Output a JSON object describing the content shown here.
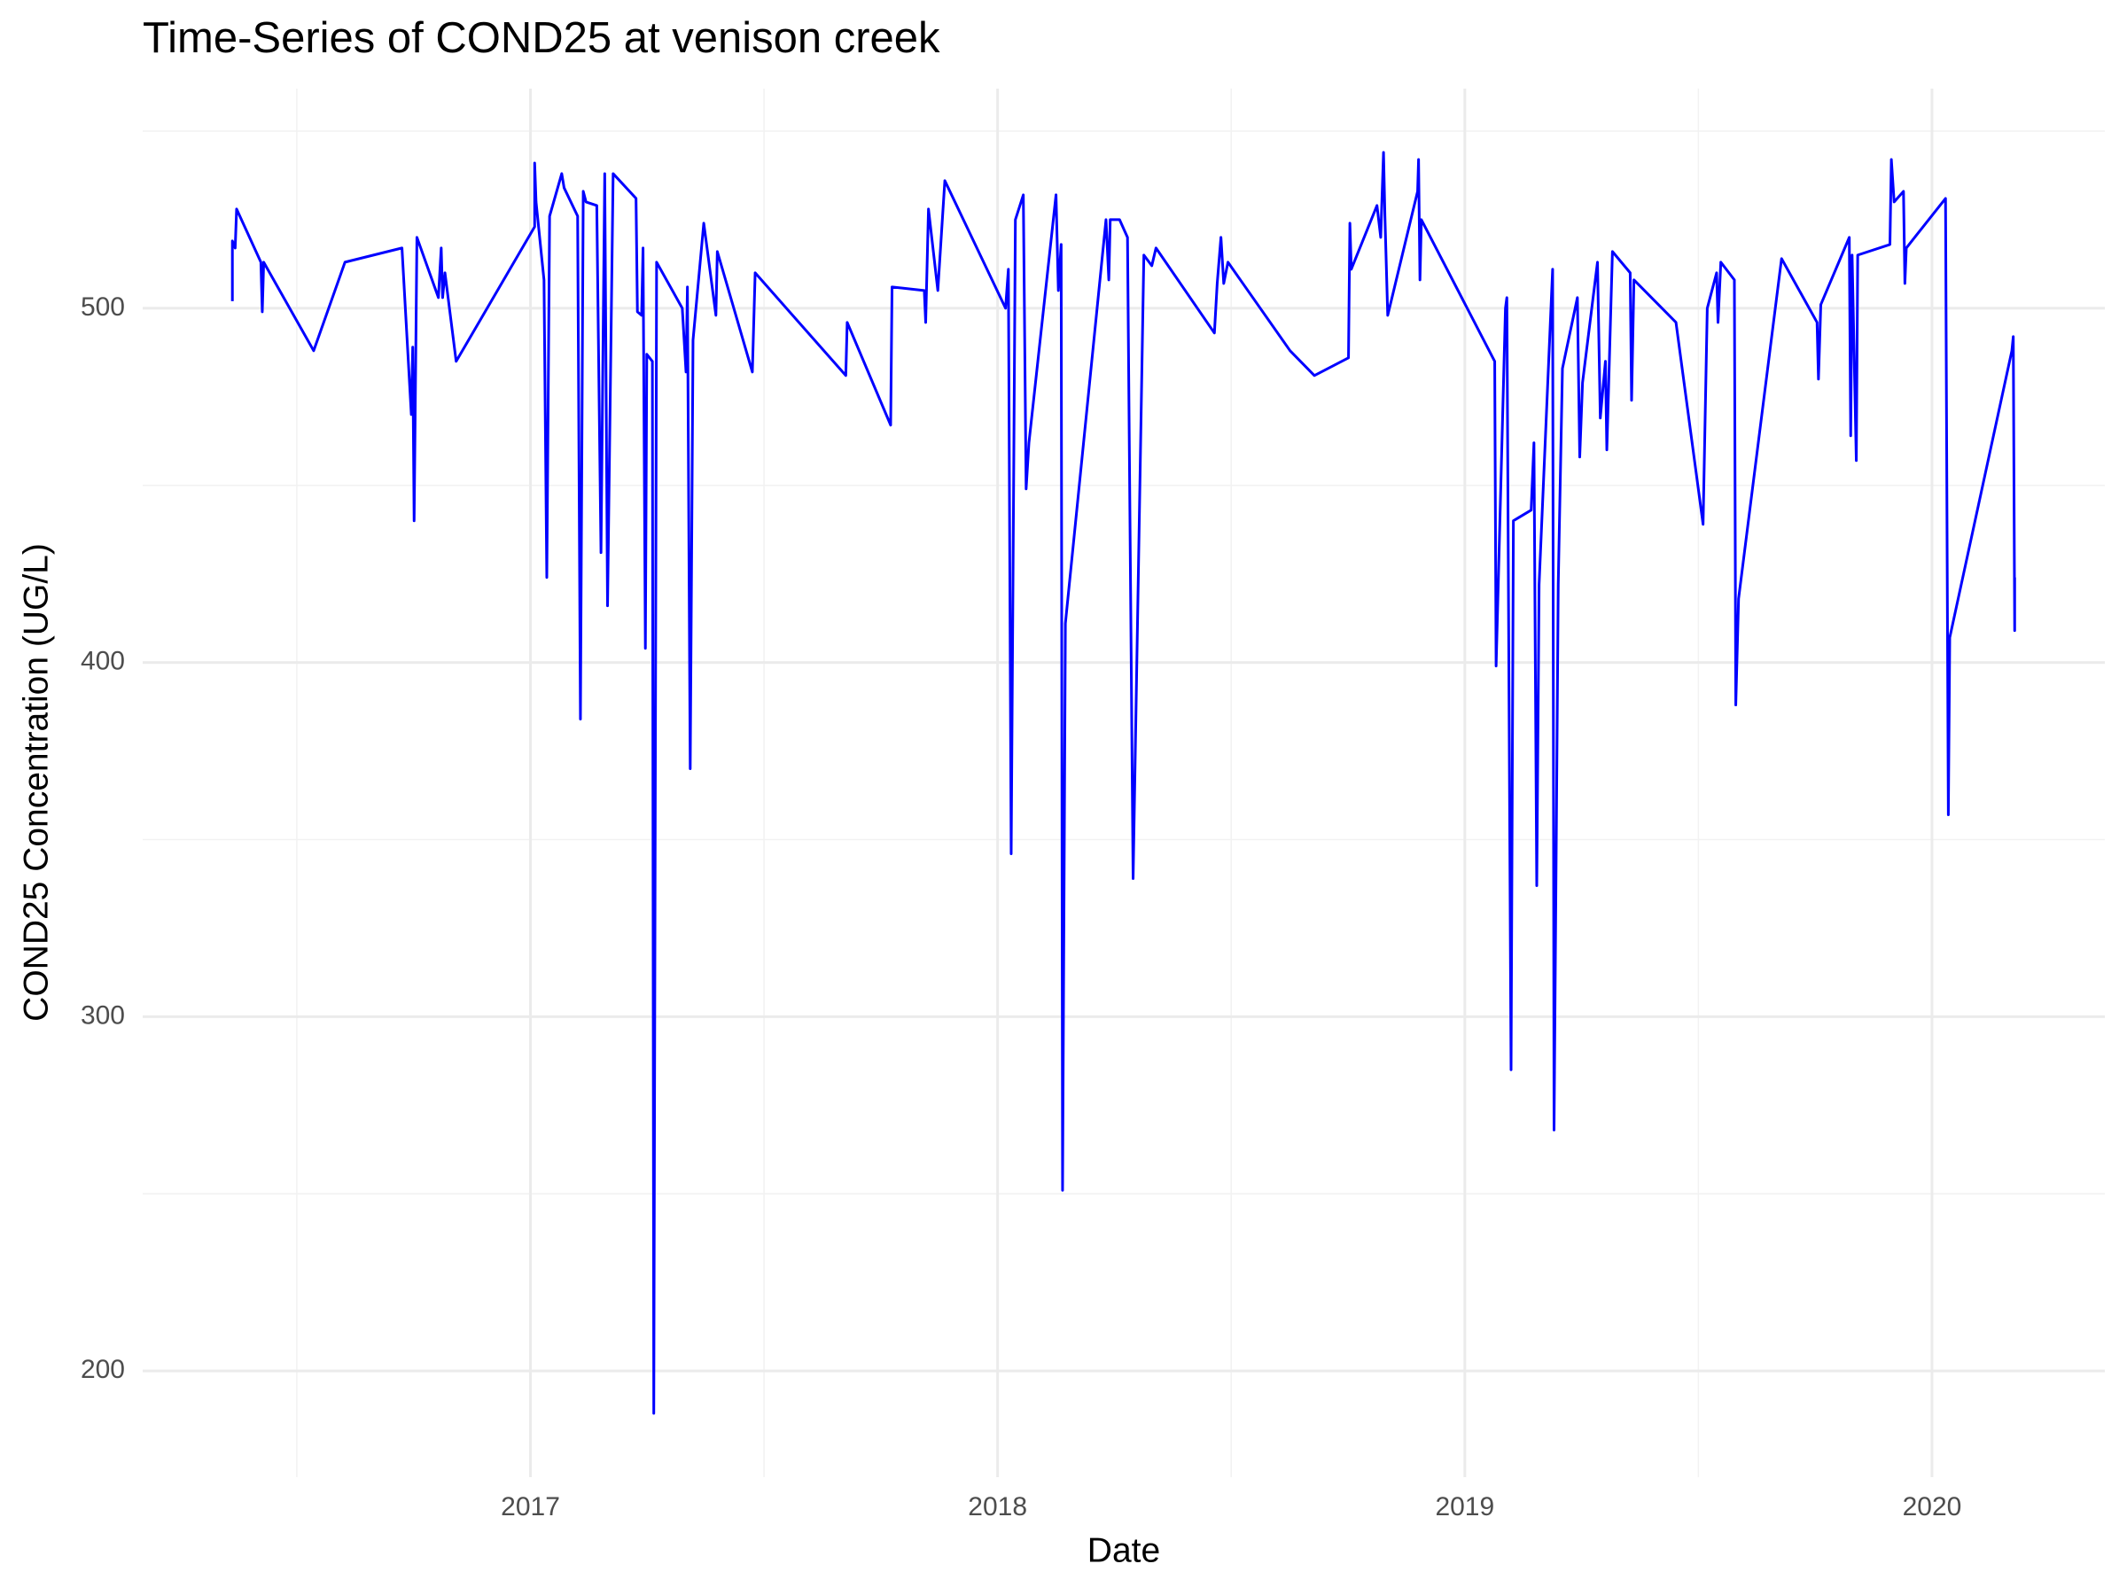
{
  "chart_data": {
    "type": "line",
    "title": "Time-Series of COND25 at venison creek",
    "x_label": "Date",
    "y_label": "COND25 Concentration (UG/L)",
    "color": "#0000ff",
    "grid": true,
    "xlim": [
      2016.17,
      2020.37
    ],
    "xticks": [
      2017,
      2018,
      2019,
      2020
    ],
    "xminorticks": [
      2016.5,
      2017.5,
      2018.5,
      2019.5
    ],
    "ylim": [
      170,
      562
    ],
    "yticks": [
      200,
      300,
      400,
      500
    ],
    "yminorticks": [
      250,
      350,
      450,
      550
    ],
    "x": [
      2016.362,
      2016.362,
      2016.368,
      2016.371,
      2016.423,
      2016.426,
      2016.429,
      2016.536,
      2016.603,
      2016.725,
      2016.745,
      2016.748,
      2016.751,
      2016.757,
      2016.803,
      2016.809,
      2016.812,
      2016.817,
      2016.841,
      2017.009,
      2017.009,
      2017.012,
      2017.029,
      2017.035,
      2017.041,
      2017.067,
      2017.072,
      2017.101,
      2017.107,
      2017.113,
      2017.119,
      2017.142,
      2017.151,
      2017.159,
      2017.165,
      2017.177,
      2017.226,
      2017.229,
      2017.238,
      2017.241,
      2017.246,
      2017.249,
      2017.261,
      2017.264,
      2017.27,
      2017.325,
      2017.333,
      2017.336,
      2017.342,
      2017.348,
      2017.371,
      2017.397,
      2017.4,
      2017.475,
      2017.481,
      2017.675,
      2017.678,
      2017.771,
      2017.774,
      2017.843,
      2017.846,
      2017.852,
      2017.872,
      2017.887,
      2018.017,
      2018.023,
      2018.029,
      2018.038,
      2018.055,
      2018.061,
      2018.067,
      2018.125,
      2018.13,
      2018.136,
      2018.139,
      2018.145,
      2018.232,
      2018.238,
      2018.241,
      2018.261,
      2018.278,
      2018.29,
      2018.313,
      2018.33,
      2018.339,
      2018.464,
      2018.47,
      2018.478,
      2018.484,
      2018.493,
      2018.626,
      2018.678,
      2018.751,
      2018.754,
      2018.757,
      2018.812,
      2018.82,
      2018.826,
      2018.829,
      2018.835,
      2018.899,
      2018.901,
      2018.904,
      2018.907,
      2019.064,
      2019.067,
      2019.087,
      2019.09,
      2019.099,
      2019.104,
      2019.142,
      2019.148,
      2019.154,
      2019.159,
      2019.188,
      2019.191,
      2019.2,
      2019.209,
      2019.241,
      2019.246,
      2019.252,
      2019.284,
      2019.29,
      2019.301,
      2019.304,
      2019.316,
      2019.354,
      2019.357,
      2019.362,
      2019.452,
      2019.51,
      2019.519,
      2019.539,
      2019.542,
      2019.548,
      2019.577,
      2019.58,
      2019.586,
      2019.678,
      2019.754,
      2019.757,
      2019.762,
      2019.823,
      2019.826,
      2019.829,
      2019.838,
      2019.841,
      2019.91,
      2019.913,
      2019.919,
      2019.939,
      2019.942,
      2019.945,
      2020.029,
      2020.035,
      2020.038,
      2020.171,
      2020.174,
      2020.177,
      2020.177
    ],
    "values": [
      502,
      519,
      517,
      528,
      513,
      499,
      513,
      488,
      513,
      517,
      470,
      489,
      440,
      520,
      503,
      517,
      503,
      510,
      485,
      523,
      541,
      530,
      508,
      424,
      526,
      538,
      534,
      526,
      384,
      533,
      530,
      529,
      431,
      538,
      416,
      538,
      531,
      499,
      498,
      517,
      404,
      487,
      485,
      188,
      513,
      500,
      482,
      506,
      370,
      491,
      524,
      498,
      516,
      482,
      510,
      481,
      496,
      467,
      506,
      505,
      496,
      528,
      505,
      536,
      500,
      511,
      346,
      525,
      532,
      449,
      462,
      532,
      505,
      518,
      251,
      411,
      525,
      508,
      525,
      525,
      520,
      339,
      515,
      512,
      517,
      493,
      507,
      520,
      507,
      513,
      488,
      481,
      486,
      524,
      511,
      529,
      520,
      544,
      526,
      498,
      533,
      542,
      508,
      525,
      485,
      399,
      500,
      503,
      285,
      440,
      443,
      462,
      337,
      422,
      511,
      268,
      422,
      483,
      503,
      458,
      479,
      513,
      469,
      485,
      460,
      516,
      510,
      474,
      508,
      496,
      439,
      500,
      510,
      496,
      513,
      508,
      388,
      418,
      514,
      496,
      480,
      501,
      520,
      464,
      515,
      457,
      515,
      518,
      542,
      530,
      533,
      507,
      517,
      531,
      357,
      407,
      488,
      492,
      409,
      424
    ]
  }
}
